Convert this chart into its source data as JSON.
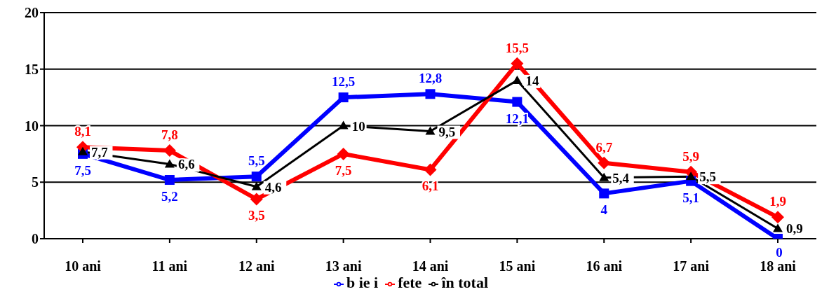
{
  "chart_data": {
    "type": "line",
    "categories": [
      "10 ani",
      "11 ani",
      "12 ani",
      "13 ani",
      "14 ani",
      "15 ani",
      "16 ani",
      "17 ani",
      "18 ani"
    ],
    "series": [
      {
        "name": "b ie i",
        "color": "#0000ff",
        "marker": "square",
        "values": [
          7.5,
          5.2,
          5.5,
          12.5,
          12.8,
          12.1,
          4,
          5.1,
          0
        ],
        "value_labels": [
          "7,5",
          "5,2",
          "5,5",
          "12,5",
          "12,8",
          "12,1",
          "4",
          "5,1",
          "0"
        ]
      },
      {
        "name": "fete",
        "color": "#ff0000",
        "marker": "diamond",
        "values": [
          8.1,
          7.8,
          3.5,
          7.5,
          6.1,
          15.5,
          6.7,
          5.9,
          1.9
        ],
        "value_labels": [
          "8,1",
          "7,8",
          "3,5",
          "7,5",
          "6,1",
          "15,5",
          "6,7",
          "5,9",
          "1,9"
        ]
      },
      {
        "name": "în total",
        "color": "#000000",
        "marker": "triangle",
        "values": [
          7.7,
          6.6,
          4.6,
          10,
          9.5,
          14,
          5.4,
          5.5,
          0.9
        ],
        "value_labels": [
          "7,7",
          "6,6",
          "4,6",
          "10",
          "9,5",
          "14",
          "5,4",
          "5,5",
          "0,9"
        ]
      }
    ],
    "ylim": [
      0,
      20
    ],
    "yticks": [
      0,
      5,
      10,
      15,
      20
    ],
    "grid": "y",
    "legend": "bottom"
  }
}
